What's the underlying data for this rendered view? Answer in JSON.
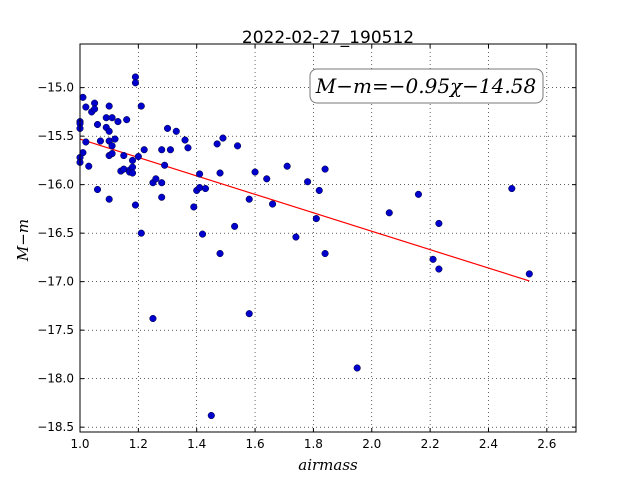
{
  "chart_data": {
    "type": "scatter",
    "title": "2022-02-27_190512",
    "xlabel": "airmass",
    "ylabel": "M−m",
    "xlim": [
      1.0,
      2.7
    ],
    "ylim": [
      -18.55,
      -14.55
    ],
    "xticks": [
      1.0,
      1.2,
      1.4,
      1.6,
      1.8,
      2.0,
      2.2,
      2.4,
      2.6
    ],
    "xtick_labels": [
      "1.0",
      "1.2",
      "1.4",
      "1.6",
      "1.8",
      "2.0",
      "2.2",
      "2.4",
      "2.6"
    ],
    "yticks": [
      -15.0,
      -15.5,
      -16.0,
      -16.5,
      -17.0,
      -17.5,
      -18.0,
      -18.5
    ],
    "ytick_labels": [
      "−15.0",
      "−15.5",
      "−16.0",
      "−16.5",
      "−17.0",
      "−17.5",
      "−18.0",
      "−18.5"
    ],
    "grid": true,
    "annotation": "M−m=−0.95χ−14.58",
    "fit": {
      "slope": -0.95,
      "intercept": -14.58,
      "x_range": [
        1.0,
        2.54
      ],
      "color": "#ff0000"
    },
    "marker_color": "#0000cc",
    "points": [
      [
        1.0,
        -15.35
      ],
      [
        1.0,
        -15.37
      ],
      [
        1.0,
        -15.42
      ],
      [
        1.0,
        -15.72
      ],
      [
        1.0,
        -15.77
      ],
      [
        1.01,
        -15.1
      ],
      [
        1.01,
        -15.67
      ],
      [
        1.02,
        -15.2
      ],
      [
        1.02,
        -15.56
      ],
      [
        1.03,
        -15.81
      ],
      [
        1.04,
        -15.25
      ],
      [
        1.05,
        -15.16
      ],
      [
        1.05,
        -15.22
      ],
      [
        1.06,
        -15.38
      ],
      [
        1.06,
        -16.05
      ],
      [
        1.07,
        -15.55
      ],
      [
        1.09,
        -15.31
      ],
      [
        1.09,
        -15.41
      ],
      [
        1.1,
        -15.19
      ],
      [
        1.1,
        -15.45
      ],
      [
        1.1,
        -15.55
      ],
      [
        1.1,
        -15.7
      ],
      [
        1.1,
        -16.15
      ],
      [
        1.11,
        -15.31
      ],
      [
        1.11,
        -15.6
      ],
      [
        1.11,
        -15.68
      ],
      [
        1.12,
        -15.53
      ],
      [
        1.13,
        -15.35
      ],
      [
        1.14,
        -15.86
      ],
      [
        1.15,
        -15.7
      ],
      [
        1.15,
        -15.84
      ],
      [
        1.16,
        -15.33
      ],
      [
        1.17,
        -15.85
      ],
      [
        1.17,
        -15.87
      ],
      [
        1.18,
        -15.75
      ],
      [
        1.18,
        -15.82
      ],
      [
        1.18,
        -15.88
      ],
      [
        1.19,
        -14.89
      ],
      [
        1.19,
        -14.95
      ],
      [
        1.19,
        -16.21
      ],
      [
        1.2,
        -15.71
      ],
      [
        1.21,
        -15.19
      ],
      [
        1.21,
        -16.5
      ],
      [
        1.22,
        -15.64
      ],
      [
        1.25,
        -15.98
      ],
      [
        1.25,
        -17.38
      ],
      [
        1.26,
        -15.94
      ],
      [
        1.28,
        -15.64
      ],
      [
        1.28,
        -15.98
      ],
      [
        1.28,
        -16.13
      ],
      [
        1.29,
        -15.8
      ],
      [
        1.3,
        -15.42
      ],
      [
        1.31,
        -15.64
      ],
      [
        1.33,
        -15.45
      ],
      [
        1.36,
        -15.54
      ],
      [
        1.37,
        -15.62
      ],
      [
        1.39,
        -16.23
      ],
      [
        1.4,
        -16.06
      ],
      [
        1.41,
        -15.89
      ],
      [
        1.41,
        -16.03
      ],
      [
        1.42,
        -16.51
      ],
      [
        1.43,
        -16.04
      ],
      [
        1.45,
        -18.38
      ],
      [
        1.47,
        -15.58
      ],
      [
        1.48,
        -15.88
      ],
      [
        1.48,
        -16.71
      ],
      [
        1.49,
        -15.52
      ],
      [
        1.53,
        -16.43
      ],
      [
        1.54,
        -15.6
      ],
      [
        1.58,
        -16.15
      ],
      [
        1.58,
        -17.33
      ],
      [
        1.6,
        -15.87
      ],
      [
        1.64,
        -15.94
      ],
      [
        1.66,
        -16.2
      ],
      [
        1.71,
        -15.81
      ],
      [
        1.74,
        -16.54
      ],
      [
        1.78,
        -15.97
      ],
      [
        1.81,
        -16.35
      ],
      [
        1.82,
        -16.06
      ],
      [
        1.84,
        -15.84
      ],
      [
        1.84,
        -16.71
      ],
      [
        1.95,
        -17.89
      ],
      [
        2.06,
        -16.29
      ],
      [
        2.16,
        -16.1
      ],
      [
        2.21,
        -16.77
      ],
      [
        2.23,
        -16.4
      ],
      [
        2.23,
        -16.87
      ],
      [
        2.48,
        -16.04
      ],
      [
        2.54,
        -16.92
      ]
    ]
  }
}
